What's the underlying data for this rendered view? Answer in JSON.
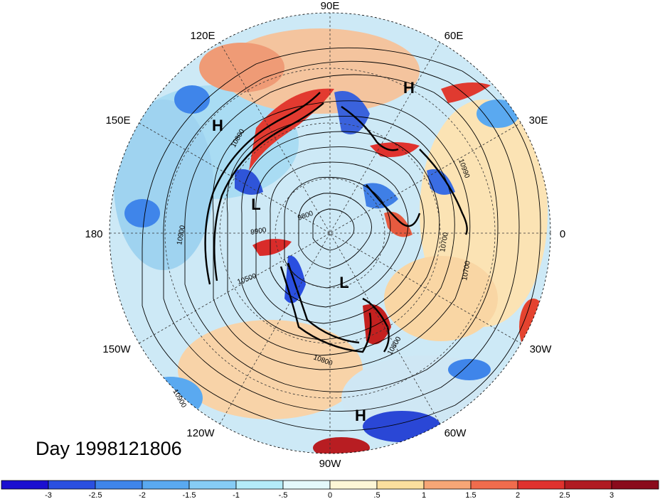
{
  "longitude_labels": [
    {
      "text": "90E",
      "angle": 0
    },
    {
      "text": "60E",
      "angle": 30
    },
    {
      "text": "30E",
      "angle": 60
    },
    {
      "text": "0",
      "angle": 90
    },
    {
      "text": "30W",
      "angle": 120
    },
    {
      "text": "60W",
      "angle": 150
    },
    {
      "text": "90W",
      "angle": 180
    },
    {
      "text": "120W",
      "angle": 210
    },
    {
      "text": "150W",
      "angle": 240
    },
    {
      "text": "180",
      "angle": 270
    },
    {
      "text": "150E",
      "angle": 300
    },
    {
      "text": "120E",
      "angle": 330
    }
  ],
  "pressure_centers": [
    "H",
    "H",
    "L",
    "L",
    "H"
  ],
  "contour_labels": [
    "10900",
    "10800",
    "10700",
    "10500",
    "9900",
    "9800",
    "10990",
    "10700",
    "10800",
    "10900",
    "10800"
  ],
  "date": "Day 1998121806",
  "colorbar": {
    "colors": [
      "#1b0fd0",
      "#2a4fe0",
      "#3f85ea",
      "#5aa9f0",
      "#86ccf5",
      "#b4ecf8",
      "#e4f8fb",
      "#fdf6d6",
      "#fbdf9e",
      "#f6a676",
      "#f06c4d",
      "#e0322e",
      "#b01b22",
      "#8a0b1c"
    ],
    "labels": [
      "-3",
      "-2.5",
      "-2",
      "-1.5",
      "-1",
      "-.5",
      "0",
      ".5",
      "1",
      "1.5",
      "2",
      "2.5",
      "3"
    ]
  }
}
